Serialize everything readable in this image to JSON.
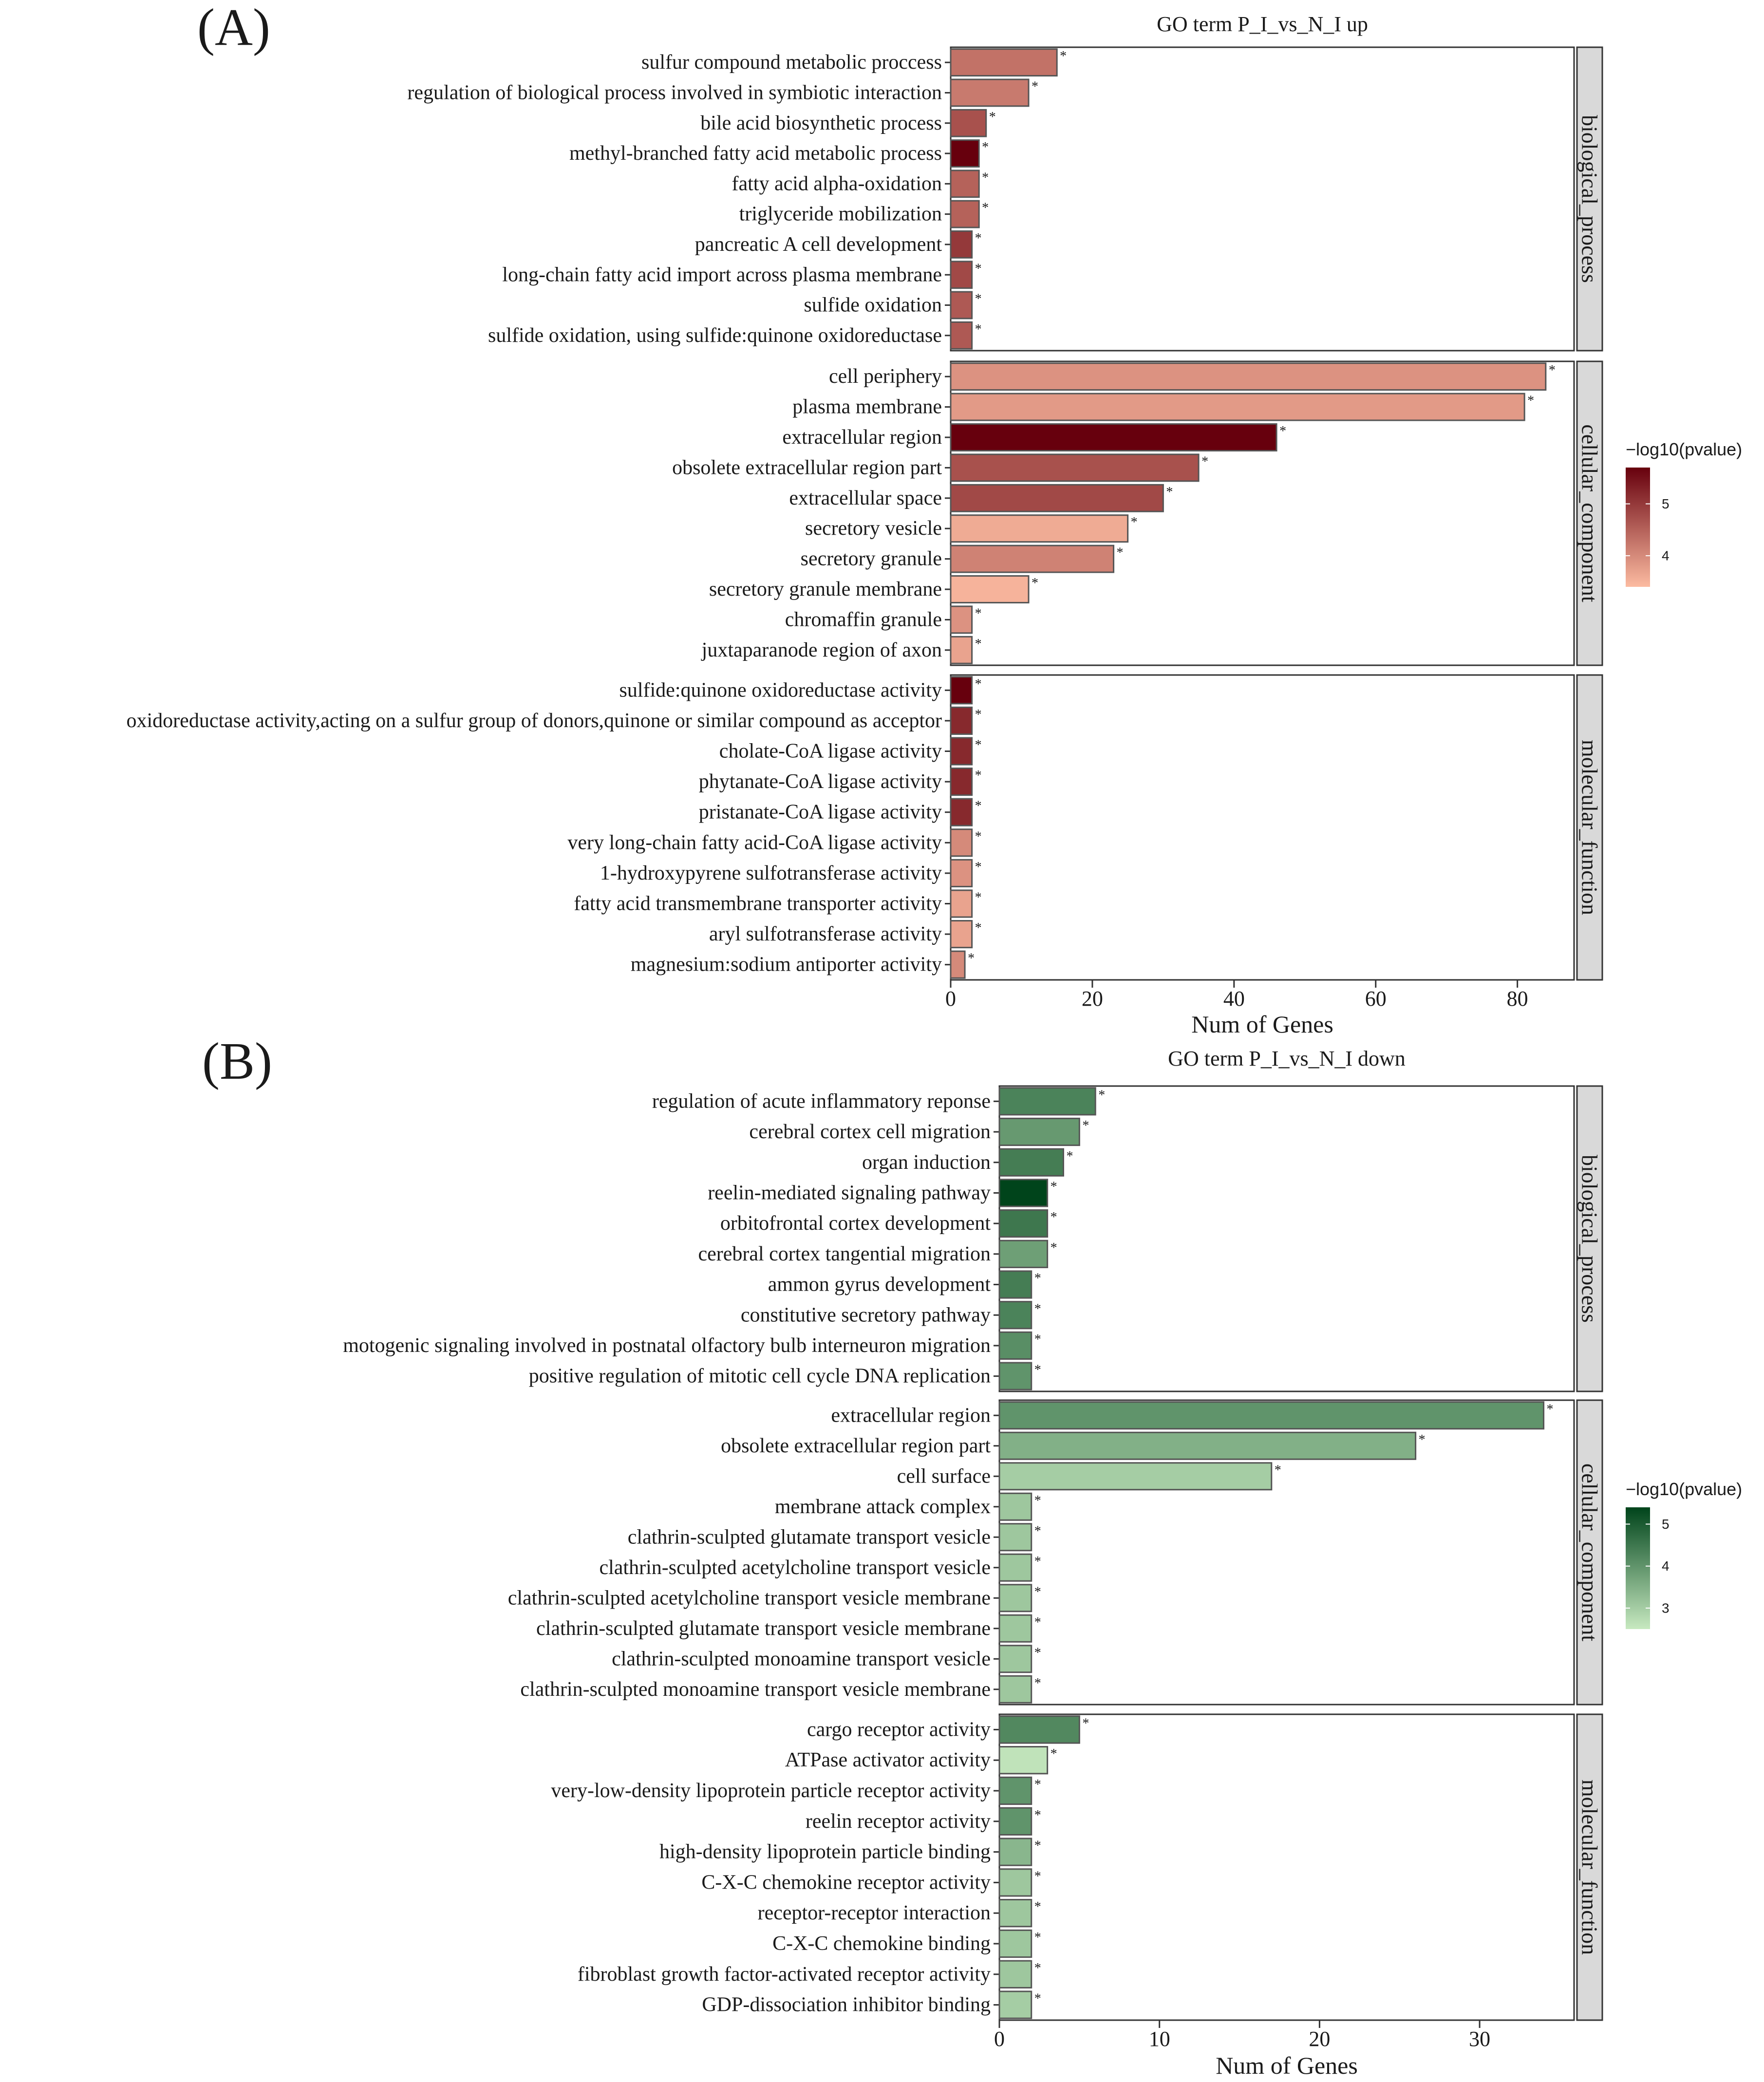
{
  "chart_data": [
    {
      "type": "bar",
      "orientation": "horizontal",
      "panel_label": "(A)",
      "title": "GO term P_I_vs_N_I up",
      "xlabel": "Num of Genes",
      "ylabel": "",
      "xlim": [
        0,
        88
      ],
      "xticks": [
        0,
        20,
        40,
        60,
        80
      ],
      "legend": {
        "title": "−log10(pvalue)",
        "ticks": [
          4,
          5
        ],
        "range": [
          3.4,
          5.7
        ],
        "low_color": "#fcbba1",
        "high_color": "#67000d",
        "position": "right"
      },
      "facets": [
        {
          "name": "biological_process",
          "terms": [
            {
              "label": "sulfur compound metabolic proccess",
              "value": 15,
              "pvalue": 4.3,
              "sig": "*"
            },
            {
              "label": "regulation of biological process involved in symbiotic interaction",
              "value": 11,
              "pvalue": 4.2,
              "sig": "*"
            },
            {
              "label": "bile acid biosynthetic process",
              "value": 5,
              "pvalue": 4.7,
              "sig": "*"
            },
            {
              "label": "methyl-branched fatty acid metabolic process",
              "value": 4,
              "pvalue": 5.7,
              "sig": "*"
            },
            {
              "label": "fatty acid alpha-oxidation",
              "value": 4,
              "pvalue": 4.5,
              "sig": "*"
            },
            {
              "label": "triglyceride mobilization",
              "value": 4,
              "pvalue": 4.5,
              "sig": "*"
            },
            {
              "label": "pancreatic A cell development",
              "value": 3,
              "pvalue": 5.0,
              "sig": "*"
            },
            {
              "label": "long-chain fatty acid import across plasma membrane",
              "value": 3,
              "pvalue": 4.8,
              "sig": "*"
            },
            {
              "label": "sulfide oxidation",
              "value": 3,
              "pvalue": 4.6,
              "sig": "*"
            },
            {
              "label": "sulfide oxidation, using sulfide:quinone oxidoreductase",
              "value": 3,
              "pvalue": 4.6,
              "sig": "*"
            }
          ]
        },
        {
          "name": "cellular_component",
          "terms": [
            {
              "label": "cell periphery",
              "value": 84,
              "pvalue": 3.9,
              "sig": "*"
            },
            {
              "label": "plasma membrane",
              "value": 81,
              "pvalue": 3.8,
              "sig": "*"
            },
            {
              "label": "extracellular region",
              "value": 46,
              "pvalue": 5.7,
              "sig": "*"
            },
            {
              "label": "obsolete extracellular region part",
              "value": 35,
              "pvalue": 4.7,
              "sig": "*"
            },
            {
              "label": "extracellular space",
              "value": 30,
              "pvalue": 4.8,
              "sig": "*"
            },
            {
              "label": "secretory vesicle",
              "value": 25,
              "pvalue": 3.6,
              "sig": "*"
            },
            {
              "label": "secretory granule",
              "value": 23,
              "pvalue": 4.1,
              "sig": "*"
            },
            {
              "label": "secretory granule membrane",
              "value": 11,
              "pvalue": 3.5,
              "sig": "*"
            },
            {
              "label": "chromaffin granule",
              "value": 3,
              "pvalue": 3.9,
              "sig": "*"
            },
            {
              "label": "juxtaparanode region of axon",
              "value": 3,
              "pvalue": 3.7,
              "sig": "*"
            }
          ]
        },
        {
          "name": "molecular_function",
          "terms": [
            {
              "label": "sulfide:quinone oxidoreductase activity",
              "value": 3,
              "pvalue": 5.7,
              "sig": "*"
            },
            {
              "label": "oxidoreductase activity,acting on a sulfur group of donors,quinone or similar compound as acceptor",
              "value": 3,
              "pvalue": 5.2,
              "sig": "*"
            },
            {
              "label": "cholate-CoA ligase activity",
              "value": 3,
              "pvalue": 5.2,
              "sig": "*"
            },
            {
              "label": "phytanate-CoA ligase activity",
              "value": 3,
              "pvalue": 5.2,
              "sig": "*"
            },
            {
              "label": "pristanate-CoA ligase activity",
              "value": 3,
              "pvalue": 5.2,
              "sig": "*"
            },
            {
              "label": "very long-chain fatty acid-CoA ligase activity",
              "value": 3,
              "pvalue": 4.0,
              "sig": "*"
            },
            {
              "label": "1-hydroxypyrene sulfotransferase activity",
              "value": 3,
              "pvalue": 3.9,
              "sig": "*"
            },
            {
              "label": "fatty acid transmembrane transporter activity",
              "value": 3,
              "pvalue": 3.7,
              "sig": "*"
            },
            {
              "label": "aryl sulfotransferase activity",
              "value": 3,
              "pvalue": 3.7,
              "sig": "*"
            },
            {
              "label": "magnesium:sodium antiporter activity",
              "value": 2,
              "pvalue": 4.0,
              "sig": "*"
            }
          ]
        }
      ]
    },
    {
      "type": "bar",
      "orientation": "horizontal",
      "panel_label": "(B)",
      "title": "GO term P_I_vs_N_I down",
      "xlabel": "Num of Genes",
      "ylabel": "",
      "xlim": [
        0,
        35.9
      ],
      "xticks": [
        0,
        10,
        20,
        30
      ],
      "legend": {
        "title": "−log10(pvalue)",
        "ticks": [
          3,
          4,
          5
        ],
        "range": [
          2.5,
          5.4
        ],
        "low_color": "#c7e9c0",
        "high_color": "#00441b",
        "position": "right"
      },
      "facets": [
        {
          "name": "biological_process",
          "terms": [
            {
              "label": "regulation of acute inflammatory reponse",
              "value": 6,
              "pvalue": 4.3,
              "sig": "*"
            },
            {
              "label": "cerebral cortex cell migration",
              "value": 5,
              "pvalue": 3.9,
              "sig": "*"
            },
            {
              "label": "organ induction",
              "value": 4,
              "pvalue": 4.4,
              "sig": "*"
            },
            {
              "label": "reelin-mediated signaling pathway",
              "value": 3,
              "pvalue": 5.4,
              "sig": "*"
            },
            {
              "label": "orbitofrontal cortex development",
              "value": 3,
              "pvalue": 4.5,
              "sig": "*"
            },
            {
              "label": "cerebral cortex tangential migration",
              "value": 3,
              "pvalue": 3.8,
              "sig": "*"
            },
            {
              "label": "ammon gyrus development",
              "value": 2,
              "pvalue": 4.4,
              "sig": "*"
            },
            {
              "label": "constitutive secretory pathway",
              "value": 2,
              "pvalue": 4.3,
              "sig": "*"
            },
            {
              "label": "motogenic signaling involved in postnatal olfactory bulb interneuron migration",
              "value": 2,
              "pvalue": 4.1,
              "sig": "*"
            },
            {
              "label": "positive regulation of mitotic cell cycle DNA replication",
              "value": 2,
              "pvalue": 4.0,
              "sig": "*"
            }
          ]
        },
        {
          "name": "cellular_component",
          "terms": [
            {
              "label": "extracellular region",
              "value": 34,
              "pvalue": 4.0,
              "sig": "*"
            },
            {
              "label": "obsolete extracellular region part",
              "value": 26,
              "pvalue": 3.5,
              "sig": "*"
            },
            {
              "label": "cell surface",
              "value": 17,
              "pvalue": 3.0,
              "sig": "*"
            },
            {
              "label": "membrane attack complex",
              "value": 2,
              "pvalue": 3.1,
              "sig": "*"
            },
            {
              "label": "clathrin-sculpted glutamate transport vesicle",
              "value": 2,
              "pvalue": 3.1,
              "sig": "*"
            },
            {
              "label": "clathrin-sculpted acetylcholine transport vesicle",
              "value": 2,
              "pvalue": 3.1,
              "sig": "*"
            },
            {
              "label": "clathrin-sculpted acetylcholine transport vesicle membrane",
              "value": 2,
              "pvalue": 3.1,
              "sig": "*"
            },
            {
              "label": "clathrin-sculpted glutamate transport vesicle membrane",
              "value": 2,
              "pvalue": 3.1,
              "sig": "*"
            },
            {
              "label": "clathrin-sculpted monoamine transport vesicle",
              "value": 2,
              "pvalue": 3.1,
              "sig": "*"
            },
            {
              "label": "clathrin-sculpted monoamine transport vesicle membrane",
              "value": 2,
              "pvalue": 3.1,
              "sig": "*"
            }
          ]
        },
        {
          "name": "molecular_function",
          "terms": [
            {
              "label": "cargo receptor activity",
              "value": 5,
              "pvalue": 4.2,
              "sig": "*"
            },
            {
              "label": "ATPase activator activity",
              "value": 3,
              "pvalue": 2.6,
              "sig": "*"
            },
            {
              "label": "very-low-density lipoprotein particle receptor activity",
              "value": 2,
              "pvalue": 4.0,
              "sig": "*"
            },
            {
              "label": "reelin receptor activity",
              "value": 2,
              "pvalue": 4.0,
              "sig": "*"
            },
            {
              "label": "high-density lipoprotein particle binding",
              "value": 2,
              "pvalue": 3.4,
              "sig": "*"
            },
            {
              "label": "C-X-C chemokine receptor activity",
              "value": 2,
              "pvalue": 3.1,
              "sig": "*"
            },
            {
              "label": "receptor-receptor interaction",
              "value": 2,
              "pvalue": 3.1,
              "sig": "*"
            },
            {
              "label": "C-X-C chemokine binding",
              "value": 2,
              "pvalue": 3.1,
              "sig": "*"
            },
            {
              "label": "fibroblast growth factor-activated receptor activity",
              "value": 2,
              "pvalue": 3.1,
              "sig": "*"
            },
            {
              "label": "GDP-dissociation inhibitor binding",
              "value": 2,
              "pvalue": 3.0,
              "sig": "*"
            }
          ]
        }
      ]
    }
  ]
}
